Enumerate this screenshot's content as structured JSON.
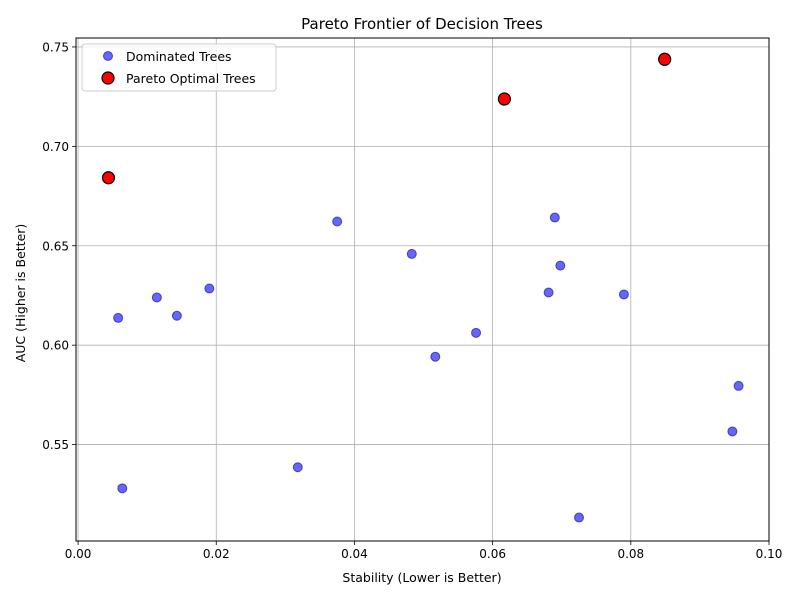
{
  "chart_data": {
    "type": "scatter",
    "title": "Pareto Frontier of Decision Trees",
    "xlabel": "Stability (Lower is Better)",
    "ylabel": "AUC (Higher is Better)",
    "xlim": [
      -0.0003,
      0.1
    ],
    "ylim": [
      0.5015,
      0.7545
    ],
    "grid": true,
    "legend_position": "upper-left",
    "x_ticks": [
      0.0,
      0.02,
      0.04,
      0.06,
      0.08,
      0.1
    ],
    "x_tick_labels": [
      "0.00",
      "0.02",
      "0.04",
      "0.06",
      "0.08",
      "0.10"
    ],
    "y_ticks": [
      0.55,
      0.6,
      0.65,
      0.7,
      0.75
    ],
    "y_tick_labels": [
      "0.55",
      "0.60",
      "0.65",
      "0.70",
      "0.75"
    ],
    "series": [
      {
        "name": "Dominated Trees",
        "color": "#0000ff",
        "edge_color": "#000080",
        "marker": "circle",
        "points": [
          {
            "x": 0.0058,
            "y": 0.6137
          },
          {
            "x": 0.0064,
            "y": 0.528
          },
          {
            "x": 0.0114,
            "y": 0.624
          },
          {
            "x": 0.0143,
            "y": 0.6148
          },
          {
            "x": 0.019,
            "y": 0.6285
          },
          {
            "x": 0.0318,
            "y": 0.5386
          },
          {
            "x": 0.0375,
            "y": 0.6622
          },
          {
            "x": 0.0483,
            "y": 0.6459
          },
          {
            "x": 0.0517,
            "y": 0.5942
          },
          {
            "x": 0.0576,
            "y": 0.6062
          },
          {
            "x": 0.0681,
            "y": 0.6265
          },
          {
            "x": 0.069,
            "y": 0.6642
          },
          {
            "x": 0.0698,
            "y": 0.64
          },
          {
            "x": 0.0725,
            "y": 0.5133
          },
          {
            "x": 0.079,
            "y": 0.6255
          },
          {
            "x": 0.0947,
            "y": 0.5566
          },
          {
            "x": 0.0956,
            "y": 0.5795
          }
        ]
      },
      {
        "name": "Pareto Optimal Trees",
        "color": "#ff0000",
        "edge_color": "#000000",
        "marker": "circle",
        "points": [
          {
            "x": 0.0044,
            "y": 0.6842
          },
          {
            "x": 0.0617,
            "y": 0.7238
          },
          {
            "x": 0.0849,
            "y": 0.7438
          }
        ]
      }
    ]
  }
}
